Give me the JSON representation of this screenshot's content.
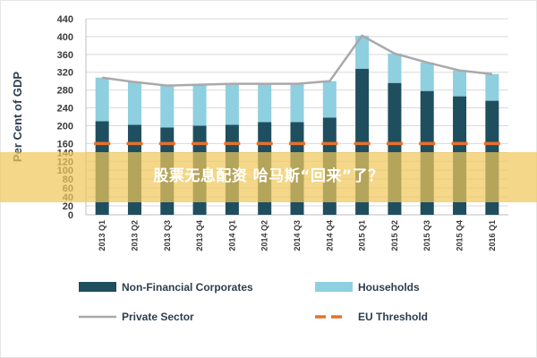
{
  "chart_data": {
    "type": "bar",
    "stacked": true,
    "categories": [
      "2013 Q1",
      "2013 Q2",
      "2013 Q3",
      "2013 Q4",
      "2014 Q1",
      "2014 Q2",
      "2014 Q3",
      "2014 Q4",
      "2015 Q1",
      "2015 Q2",
      "2015 Q3",
      "2015 Q4",
      "2016 Q1"
    ],
    "series": [
      {
        "name": "Non-Financial Corporates",
        "type": "bar",
        "color": "#1f4e5f",
        "values": [
          210,
          202,
          196,
          200,
          202,
          208,
          208,
          218,
          328,
          296,
          278,
          266,
          256
        ]
      },
      {
        "name": "Households",
        "type": "bar",
        "color": "#8ecfe0",
        "values": [
          98,
          96,
          94,
          92,
          92,
          86,
          86,
          82,
          74,
          66,
          64,
          58,
          60
        ]
      },
      {
        "name": "Private Sector",
        "type": "line",
        "color": "#a9a9a9",
        "values": [
          308,
          298,
          290,
          292,
          294,
          294,
          294,
          300,
          402,
          362,
          342,
          324,
          316
        ]
      },
      {
        "name": "EU Threshold",
        "type": "dashed-line",
        "color": "#e8702a",
        "values": [
          160,
          160,
          160,
          160,
          160,
          160,
          160,
          160,
          160,
          160,
          160,
          160,
          160
        ]
      }
    ],
    "ylabel": "Per Cent of GDP",
    "xlabel": "",
    "ylim": [
      0,
      440
    ],
    "yticks": [
      0,
      20,
      40,
      60,
      80,
      100,
      120,
      140,
      160,
      200,
      240,
      280,
      320,
      360,
      400,
      440
    ],
    "grid": true,
    "legend": "bottom"
  },
  "overlay": {
    "headline": "股票无息配资 哈马斯“回来”了？"
  },
  "colors": {
    "grid": "#d9d9d9",
    "axis": "#bfbfbf",
    "overlay": "#f0c85a"
  }
}
